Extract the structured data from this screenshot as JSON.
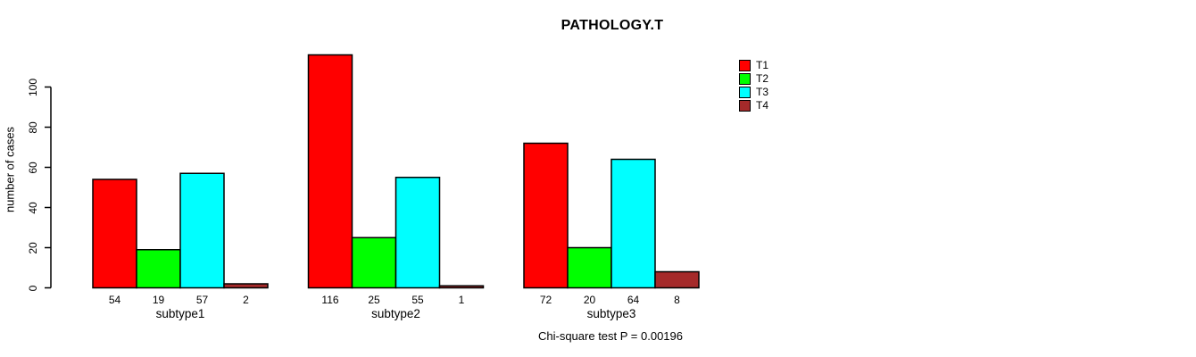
{
  "chart_data": {
    "type": "bar",
    "title": "PATHOLOGY.T",
    "categories": [
      "subtype1",
      "subtype2",
      "subtype3"
    ],
    "series": [
      {
        "name": "T1",
        "color": "#FF0000",
        "values": [
          54,
          116,
          72
        ]
      },
      {
        "name": "T2",
        "color": "#00FF00",
        "values": [
          19,
          25,
          20
        ]
      },
      {
        "name": "T3",
        "color": "#00FFFF",
        "values": [
          57,
          55,
          64
        ]
      },
      {
        "name": "T4",
        "color": "#A52A2A",
        "values": [
          2,
          1,
          8
        ]
      }
    ],
    "ylabel": "number of cases",
    "xlabel": "",
    "yticks": [
      0,
      20,
      40,
      60,
      80,
      100
    ],
    "ylim": [
      0,
      120
    ],
    "grid": false,
    "bar_value_labels": true,
    "legend_position": "top-right",
    "annotation": "Chi-square test P = 0.00196"
  }
}
